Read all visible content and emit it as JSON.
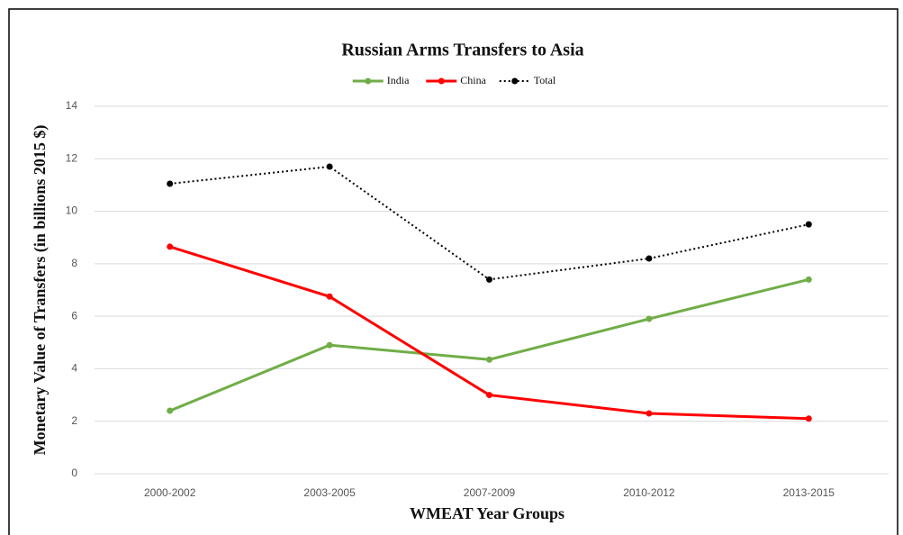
{
  "chart_data": {
    "type": "line",
    "title": "Russian Arms Transfers to Asia",
    "x_label": "WMEAT Year Groups",
    "y_label": "Monetary Value of Transfers (in billions 2015 $)",
    "categories": [
      "2000-2002",
      "2003-2005",
      "2007-2009",
      "2010-2012",
      "2013-2015"
    ],
    "series": [
      {
        "name": "India",
        "color": "#70ad47",
        "values": [
          2.4,
          4.9,
          4.35,
          5.9,
          7.4
        ]
      },
      {
        "name": "China",
        "color": "#ff0000",
        "values": [
          8.65,
          6.75,
          3.0,
          2.3,
          2.1
        ]
      },
      {
        "name": "Total",
        "color": "#000000",
        "dashed": true,
        "values": [
          11.05,
          11.7,
          7.4,
          8.2,
          9.5
        ]
      }
    ],
    "ylim": [
      0,
      14
    ],
    "yticks": [
      0,
      2,
      4,
      6,
      8,
      10,
      12,
      14
    ],
    "grid": true,
    "legend": "top"
  }
}
